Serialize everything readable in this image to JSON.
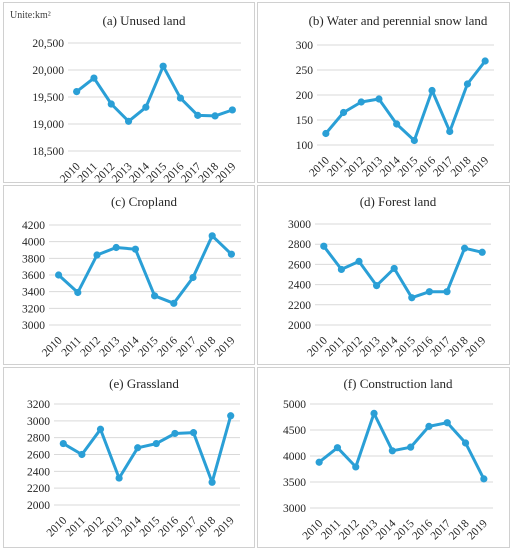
{
  "unit_label": "Unite:km²",
  "colors": {
    "series": "#2a9fd6",
    "grid": "#d9d9d9",
    "text": "#262626",
    "border": "#d0d0d0"
  },
  "chart_data": [
    {
      "type": "line",
      "title": "(a) Unused land",
      "categories": [
        "2010",
        "2011",
        "2012",
        "2013",
        "2014",
        "2015",
        "2016",
        "2017",
        "2018",
        "2019"
      ],
      "values": [
        19600,
        19850,
        19370,
        19050,
        19310,
        20070,
        19480,
        19160,
        19150,
        19260
      ],
      "ylim": [
        18500,
        20500
      ],
      "yticks": [
        18500,
        19000,
        19500,
        20000,
        20500
      ],
      "ytick_labels": [
        "18,500",
        "19,000",
        "19,500",
        "20,000",
        "20,500"
      ],
      "grid": true
    },
    {
      "type": "line",
      "title": "(b) Water and perennial snow land",
      "categories": [
        "2010",
        "2011",
        "2012",
        "2013",
        "2014",
        "2015",
        "2016",
        "2017",
        "2018",
        "2019"
      ],
      "values": [
        123,
        165,
        186,
        192,
        142,
        109,
        209,
        127,
        222,
        268
      ],
      "ylim": [
        100,
        300
      ],
      "yticks": [
        100,
        150,
        200,
        250,
        300
      ],
      "ytick_labels": [
        "100",
        "150",
        "200",
        "250",
        "300"
      ],
      "grid": true
    },
    {
      "type": "line",
      "title": "(c) Cropland",
      "categories": [
        "2010",
        "2011",
        "2012",
        "2013",
        "2014",
        "2015",
        "2016",
        "2017",
        "2018",
        "2019"
      ],
      "values": [
        3600,
        3390,
        3840,
        3930,
        3910,
        3350,
        3260,
        3570,
        4070,
        3850
      ],
      "ylim": [
        3000,
        4200
      ],
      "yticks": [
        3000,
        3200,
        3400,
        3600,
        3800,
        4000,
        4200
      ],
      "ytick_labels": [
        "3000",
        "3200",
        "3400",
        "3600",
        "3800",
        "4000",
        "4200"
      ],
      "grid": true
    },
    {
      "type": "line",
      "title": "(d) Forest land",
      "categories": [
        "2010",
        "2011",
        "2012",
        "2013",
        "2014",
        "2015",
        "2016",
        "2017",
        "2018",
        "2019"
      ],
      "values": [
        2780,
        2550,
        2630,
        2390,
        2560,
        2270,
        2330,
        2330,
        2760,
        2720
      ],
      "ylim": [
        2000,
        3000
      ],
      "yticks": [
        2000,
        2200,
        2400,
        2600,
        2800,
        3000
      ],
      "ytick_labels": [
        "2000",
        "2200",
        "2400",
        "2600",
        "2800",
        "3000"
      ],
      "grid": true
    },
    {
      "type": "line",
      "title": "(e) Grassland",
      "categories": [
        "2010",
        "2011",
        "2012",
        "2013",
        "2014",
        "2015",
        "2016",
        "2017",
        "2018",
        "2019"
      ],
      "values": [
        2730,
        2600,
        2900,
        2320,
        2680,
        2730,
        2850,
        2860,
        2270,
        3060
      ],
      "ylim": [
        2000,
        3200
      ],
      "yticks": [
        2000,
        2200,
        2400,
        2600,
        2800,
        3000,
        3200
      ],
      "ytick_labels": [
        "2000",
        "2200",
        "2400",
        "2600",
        "2800",
        "3000",
        "3200"
      ],
      "grid": true
    },
    {
      "type": "line",
      "title": "(f) Construction land",
      "categories": [
        "2010",
        "2011",
        "2012",
        "2013",
        "2014",
        "2015",
        "2016",
        "2017",
        "2018",
        "2019"
      ],
      "values": [
        3880,
        4160,
        3790,
        4820,
        4100,
        4170,
        4570,
        4640,
        4250,
        3560
      ],
      "ylim": [
        3000,
        5000
      ],
      "yticks": [
        3000,
        3500,
        4000,
        4500,
        5000
      ],
      "ytick_labels": [
        "3000",
        "3500",
        "4000",
        "4500",
        "5000"
      ],
      "grid": true
    }
  ]
}
